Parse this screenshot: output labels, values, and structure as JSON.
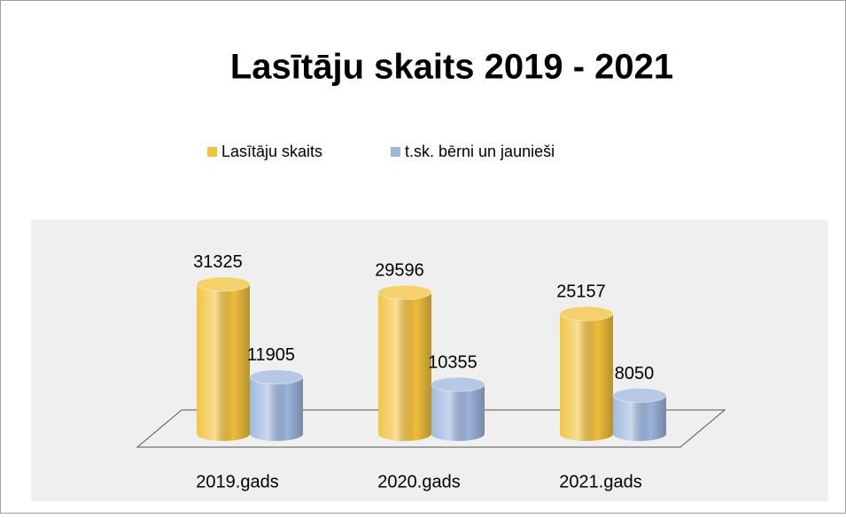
{
  "chart_data": {
    "type": "bar",
    "title": "Lasītāju skaits 2019 - 2021",
    "categories": [
      "2019.gads",
      "2020.gads",
      "2021.gads"
    ],
    "series": [
      {
        "name": "Lasītāju skaits",
        "color": "#f2c23c",
        "values": [
          31325,
          29596,
          25157
        ]
      },
      {
        "name": "t.sk. bērni un jaunieši",
        "color": "#9fb6df",
        "values": [
          11905,
          10355,
          8050
        ]
      }
    ],
    "legend": "top"
  }
}
